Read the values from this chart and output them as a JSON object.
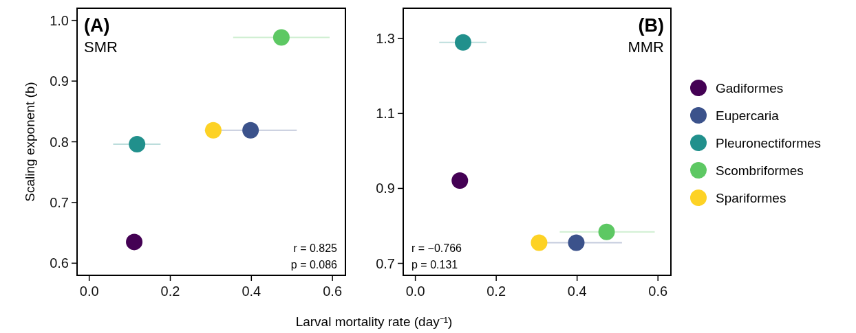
{
  "chart_data": [
    {
      "type": "scatter",
      "title": "(A)",
      "subtitle": "SMR",
      "xlabel": "Larval mortality rate (day⁻¹)",
      "ylabel": "Scaling exponent (b)",
      "annotations": [
        "r = 0.825",
        "p = 0.086"
      ],
      "marker": "circle",
      "legend": false,
      "xlim": [
        -0.03,
        0.632
      ],
      "xticks": [
        {
          "value": 0,
          "label": "0.0"
        },
        0.2,
        0.4,
        0.6
      ],
      "ylim": [
        0.58,
        1.02
      ],
      "yticks": [
        0.6,
        0.7,
        0.8,
        0.9,
        {
          "value": 1,
          "label": "1.0"
        }
      ],
      "series": [
        {
          "color": "#440154",
          "x": [
            0.111
          ],
          "values": [
            0.635
          ],
          "xerrors": [
            null
          ]
        },
        {
          "color": "#3b528b",
          "x": [
            0.398
          ],
          "values": [
            0.819
          ],
          "xerrors": [
            [
              0.285,
              0.512
            ]
          ]
        },
        {
          "color": "#21908c",
          "x": [
            0.118
          ],
          "values": [
            0.796
          ],
          "xerrors": [
            [
              0.059,
              0.176
            ]
          ]
        },
        {
          "color": "#5dc863",
          "x": [
            0.474
          ],
          "values": [
            0.972
          ],
          "xerrors": [
            [
              0.355,
              0.593
            ]
          ]
        },
        {
          "color": "#fdd225",
          "x": [
            0.306
          ],
          "values": [
            0.819
          ],
          "xerrors": [
            null
          ]
        }
      ]
    },
    {
      "type": "scatter",
      "title": "(B)",
      "subtitle": "MMR",
      "annotations": [
        "r = −0.766",
        "p = 0.131"
      ],
      "marker": "circle",
      "legend": "right",
      "xlim": [
        -0.03,
        0.632
      ],
      "xticks": [
        {
          "value": 0,
          "label": "0.0"
        },
        0.2,
        0.4,
        0.6
      ],
      "ylim": [
        0.668,
        1.381
      ],
      "yticks": [
        0.7,
        0.9,
        1.1,
        1.3
      ],
      "series": [
        {
          "name": "Gadiformes",
          "color": "#440154",
          "x": [
            0.11
          ],
          "values": [
            0.921
          ],
          "xerrors": [
            null
          ]
        },
        {
          "name": "Eupercaria",
          "color": "#3b528b",
          "x": [
            0.398
          ],
          "values": [
            0.755
          ],
          "xerrors": [
            [
              0.288,
              0.511
            ]
          ]
        },
        {
          "name": "Pleuronectiformes",
          "color": "#21908c",
          "x": [
            0.118
          ],
          "values": [
            1.29
          ],
          "xerrors": [
            [
              0.059,
              0.176
            ]
          ]
        },
        {
          "name": "Scombriformes",
          "color": "#5dc863",
          "x": [
            0.473
          ],
          "values": [
            0.784
          ],
          "xerrors": [
            [
              0.357,
              0.592
            ]
          ]
        },
        {
          "name": "Spariformes",
          "color": "#fdd225",
          "x": [
            0.306
          ],
          "values": [
            0.755
          ],
          "xerrors": [
            null
          ]
        }
      ]
    }
  ]
}
